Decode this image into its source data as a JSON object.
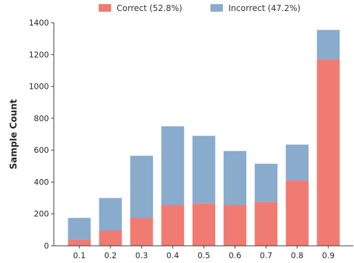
{
  "chart_data": {
    "type": "bar",
    "stacked": true,
    "categories": [
      "0.1",
      "0.2",
      "0.3",
      "0.4",
      "0.5",
      "0.6",
      "0.7",
      "0.8",
      "0.9"
    ],
    "series": [
      {
        "name": "Correct (52.8%)",
        "color": "#f07b72",
        "values": [
          40,
          95,
          175,
          255,
          265,
          255,
          275,
          410,
          1170
        ]
      },
      {
        "name": "Incorrect (47.2%)",
        "color": "#89abcc",
        "values": [
          135,
          205,
          390,
          495,
          425,
          340,
          240,
          225,
          185
        ]
      }
    ],
    "xlabel": "",
    "ylabel": "Sample Count",
    "ylim": [
      0,
      1400
    ],
    "yticks": [
      0,
      200,
      400,
      600,
      800,
      1000,
      1200,
      1400
    ],
    "grid": false,
    "legend_position": "top-center"
  }
}
